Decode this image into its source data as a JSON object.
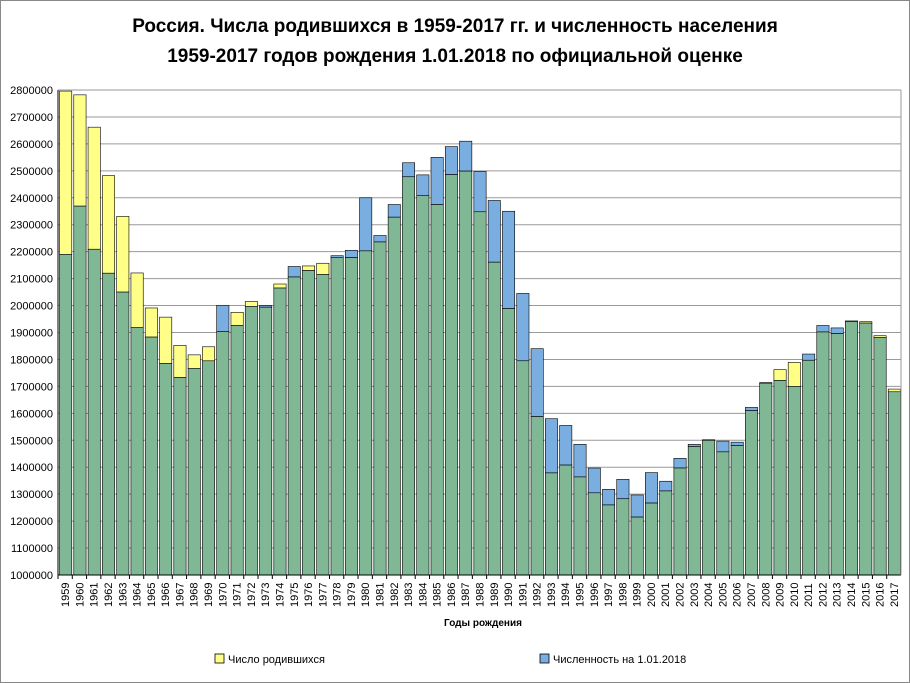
{
  "chart_data": {
    "type": "bar",
    "title": "Россия. Числа родившихся в 1959-2017 гг. и численность населения",
    "subtitle": "1959-2017 годов рождения 1.01.2018 по официальной оценке",
    "xlabel": "Годы рождения",
    "ylabel": "",
    "ylim": [
      1000000,
      2800000
    ],
    "yticks": [
      1000000,
      1100000,
      1200000,
      1300000,
      1400000,
      1500000,
      1600000,
      1700000,
      1800000,
      1900000,
      2000000,
      2100000,
      2200000,
      2300000,
      2400000,
      2500000,
      2600000,
      2700000,
      2800000
    ],
    "grid": true,
    "legend_position": "bottom",
    "categories": [
      "1959",
      "1960",
      "1961",
      "1962",
      "1963",
      "1964",
      "1965",
      "1966",
      "1967",
      "1968",
      "1969",
      "1970",
      "1971",
      "1972",
      "1973",
      "1974",
      "1975",
      "1976",
      "1977",
      "1978",
      "1979",
      "1980",
      "1981",
      "1982",
      "1983",
      "1984",
      "1985",
      "1986",
      "1987",
      "1988",
      "1989",
      "1990",
      "1991",
      "1992",
      "1993",
      "1994",
      "1995",
      "1996",
      "1997",
      "1998",
      "1999",
      "2000",
      "2001",
      "2002",
      "2003",
      "2004",
      "2005",
      "2006",
      "2007",
      "2008",
      "2009",
      "2010",
      "2011",
      "2012",
      "2013",
      "2014",
      "2015",
      "2016",
      "2017"
    ],
    "series": [
      {
        "name": "Число родившихся",
        "color": "#ffff88",
        "values": [
          2796000,
          2782000,
          2662000,
          2482000,
          2331000,
          2121000,
          1991000,
          1957000,
          1852000,
          1817000,
          1847000,
          1904000,
          1975000,
          2015000,
          1994000,
          2080000,
          2106000,
          2147000,
          2157000,
          2179000,
          2178000,
          2203000,
          2236000,
          2328000,
          2478000,
          2409000,
          2375000,
          2486000,
          2499000,
          2348000,
          2161000,
          1989000,
          1795000,
          1588000,
          1379000,
          1408000,
          1364000,
          1305000,
          1260000,
          1283000,
          1215000,
          1267000,
          1312000,
          1397000,
          1477000,
          1502000,
          1457000,
          1480000,
          1610000,
          1714000,
          1762000,
          1789000,
          1797000,
          1902000,
          1896000,
          1943000,
          1940000,
          1888000,
          1690000
        ]
      },
      {
        "name": "Численность на 1.01.2018",
        "color": "#7aaee0",
        "values": [
          2190000,
          2369000,
          2209000,
          2120000,
          2050000,
          1918000,
          1883000,
          1785000,
          1733000,
          1767000,
          1795000,
          2001000,
          1926000,
          1997000,
          2000000,
          2065000,
          2145000,
          2130000,
          2115000,
          2185000,
          2205000,
          2400000,
          2260000,
          2375000,
          2530000,
          2485000,
          2550000,
          2590000,
          2610000,
          2498000,
          2390000,
          2350000,
          2045000,
          1840000,
          1580000,
          1555000,
          1485000,
          1397000,
          1318000,
          1355000,
          1297000,
          1380000,
          1348000,
          1433000,
          1485000,
          1500000,
          1497000,
          1493000,
          1622000,
          1712000,
          1722000,
          1700000,
          1820000,
          1926000,
          1917000,
          1940000,
          1935000,
          1882000,
          1680000
        ]
      }
    ],
    "overlap_color": "#80b895"
  }
}
